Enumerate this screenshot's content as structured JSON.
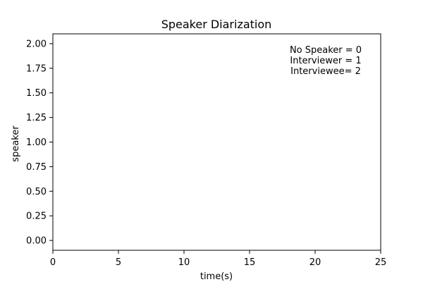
{
  "chart_data": {
    "type": "line",
    "title": "Speaker Diarization",
    "xlabel": "time(s)",
    "ylabel": "speaker",
    "xlim": [
      0,
      25
    ],
    "ylim": [
      -0.1,
      2.1
    ],
    "xticks": [
      0,
      5,
      10,
      15,
      20,
      25
    ],
    "yticks": [
      0.0,
      0.25,
      0.5,
      0.75,
      1.0,
      1.25,
      1.5,
      1.75,
      2.0
    ],
    "xtick_labels": [
      "0",
      "5",
      "10",
      "15",
      "20",
      "25"
    ],
    "ytick_labels": [
      "0.00",
      "0.25",
      "0.50",
      "0.75",
      "1.00",
      "1.25",
      "1.50",
      "1.75",
      "2.00"
    ],
    "grid": false,
    "series": [],
    "annotations": [
      "No Speaker = 0",
      "Interviewer = 1",
      "Interviewee= 2"
    ],
    "colors": {
      "axis": "#000000",
      "background": "#ffffff"
    }
  }
}
